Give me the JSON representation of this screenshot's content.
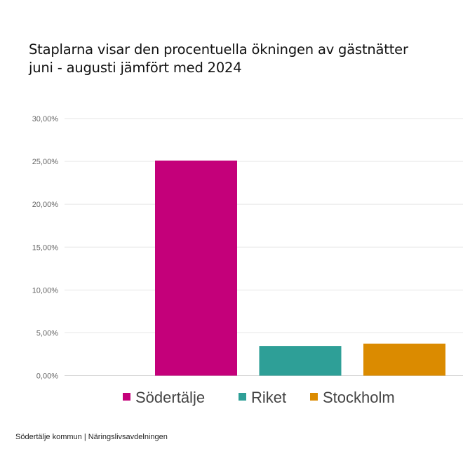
{
  "title_lines": [
    "Staplarna visar den procentuella ökningen av gästnätter",
    "juni - augusti jämfört med 2024"
  ],
  "footer": "Södertälje kommun | Näringslivsavdelningen",
  "chart_data": {
    "type": "bar",
    "title": "Staplarna visar den procentuella ökningen av gästnätter juni - augusti jämfört med 2024",
    "xlabel": "",
    "ylabel": "",
    "ylim": [
      0,
      30
    ],
    "yticks": [
      0,
      5,
      10,
      15,
      20,
      25,
      30
    ],
    "ytick_labels": [
      "0,00%",
      "5,00%",
      "10,00%",
      "15,00%",
      "20,00%",
      "25,00%",
      "30,00%"
    ],
    "grid": true,
    "legend": "bottom",
    "series": [
      {
        "name": "Södertälje",
        "values": [
          25.1
        ],
        "color": "#c4007a"
      },
      {
        "name": "Riket",
        "values": [
          3.47
        ],
        "color": "#2e9f97"
      },
      {
        "name": "Stockholm",
        "values": [
          3.74
        ],
        "color": "#db8b00"
      }
    ]
  }
}
